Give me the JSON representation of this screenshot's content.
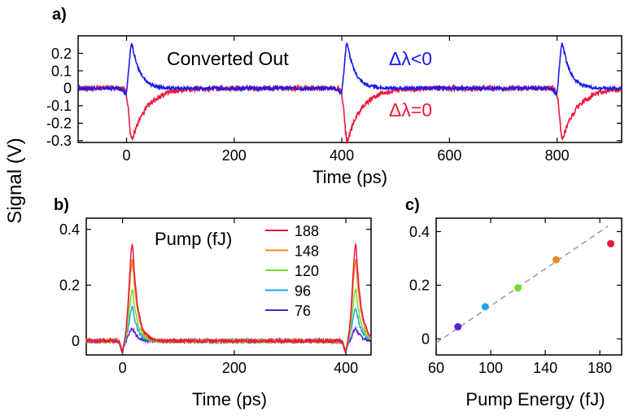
{
  "shared": {
    "ylabel": "Signal (V)"
  },
  "chart_data": [
    {
      "id": "a",
      "panel_label": "a)",
      "type": "line",
      "xlabel": "Time (ps)",
      "ylabel": "",
      "xlim": [
        -90,
        920
      ],
      "ylim": [
        -0.31,
        0.3
      ],
      "xticks": [
        0,
        200,
        400,
        600,
        800
      ],
      "yticks": [
        -0.3,
        -0.2,
        -0.1,
        0,
        0.1,
        0.2
      ],
      "ytick_labels": [
        "-0.3",
        "-0.2",
        "-0.1",
        "0",
        "0.1",
        "0.2"
      ],
      "pulse_centers": [
        10,
        410,
        810
      ],
      "annotations": {
        "converted": "Converted Out",
        "neg": "Δλ<0",
        "zero": "Δλ=0"
      },
      "series": [
        {
          "label": "Δλ<0",
          "color": "#1a1aee",
          "peak": 0.27
        },
        {
          "label": "Δλ=0",
          "color": "#ee1a3a",
          "peak": -0.3
        }
      ]
    },
    {
      "id": "b",
      "panel_label": "b)",
      "type": "line",
      "xlabel": "Time (ps)",
      "ylabel": "",
      "xlim": [
        -65,
        445
      ],
      "ylim": [
        -0.05,
        0.44
      ],
      "xticks": [
        0,
        200,
        400
      ],
      "yticks": [
        0,
        0.2,
        0.4
      ],
      "pulse_centers": [
        18,
        418
      ],
      "legend_title": "Pump (fJ)",
      "series": [
        {
          "name": "188",
          "color": "#e8173f",
          "peak": 0.35
        },
        {
          "name": "148",
          "color": "#f08a1c",
          "peak": 0.29
        },
        {
          "name": "120",
          "color": "#76dd2a",
          "peak": 0.185
        },
        {
          "name": "96",
          "color": "#1ea6e6",
          "peak": 0.12
        },
        {
          "name": "76",
          "color": "#5a1fd6",
          "peak": 0.045
        }
      ]
    },
    {
      "id": "c",
      "panel_label": "c)",
      "type": "scatter",
      "xlabel": "Pump Energy (fJ)",
      "ylabel": "",
      "xlim": [
        60,
        196
      ],
      "ylim": [
        -0.06,
        0.45
      ],
      "xticks": [
        60,
        100,
        140,
        180
      ],
      "yticks": [
        0,
        0.2,
        0.4
      ],
      "points": [
        {
          "x": 76,
          "y": 0.045,
          "color": "#5a1fd6"
        },
        {
          "x": 96,
          "y": 0.12,
          "color": "#1ea6e6"
        },
        {
          "x": 120,
          "y": 0.19,
          "color": "#76dd2a"
        },
        {
          "x": 148,
          "y": 0.295,
          "color": "#f08a1c"
        },
        {
          "x": 188,
          "y": 0.355,
          "color": "#e8173f"
        }
      ],
      "fit_line": {
        "x0": 60,
        "y0": -0.015,
        "x1": 186,
        "y1": 0.42,
        "color": "#a0a0a0"
      }
    }
  ]
}
